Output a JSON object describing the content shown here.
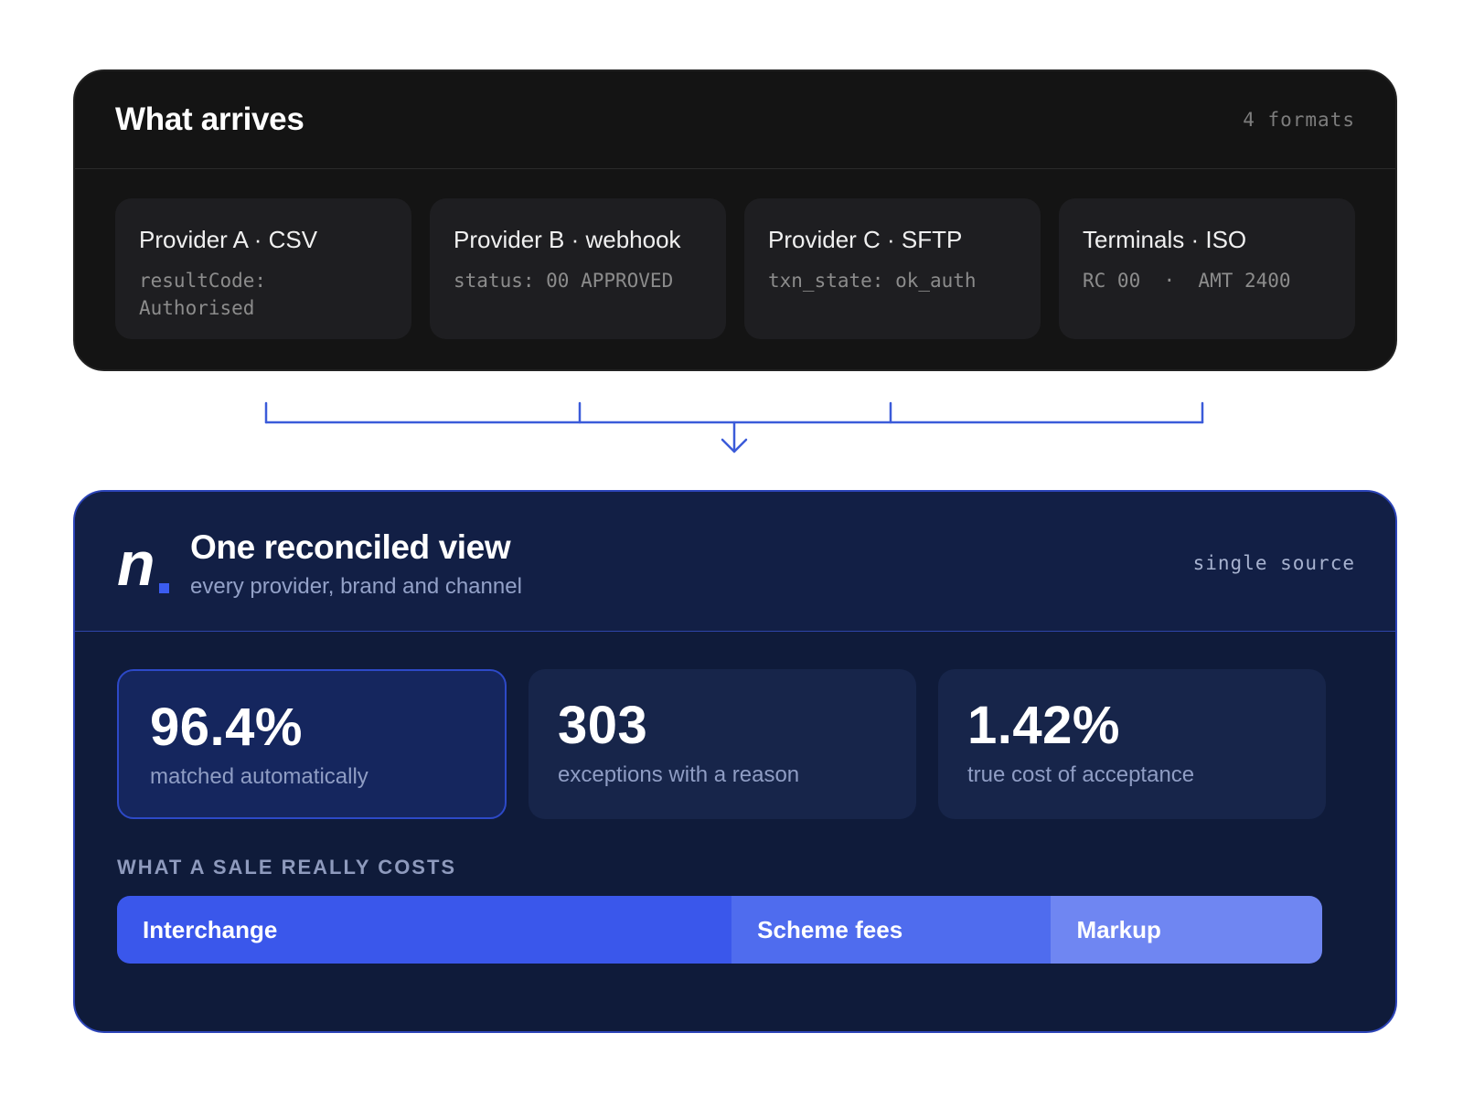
{
  "top_panel": {
    "title": "What arrives",
    "meta": "4 formats",
    "providers": [
      {
        "name": "Provider A · CSV",
        "code": "resultCode: Authorised"
      },
      {
        "name": "Provider B · webhook",
        "code": "status: 00 APPROVED"
      },
      {
        "name": "Provider C · SFTP",
        "code": "txn_state: ok_auth"
      },
      {
        "name": "Terminals · ISO",
        "code": "RC 00  ·  AMT 2400"
      }
    ]
  },
  "bottom_panel": {
    "logo": "n",
    "title": "One reconciled view",
    "subtitle": "every provider, brand and channel",
    "meta": "single source",
    "stats": [
      {
        "value": "96.4%",
        "label": "matched automatically"
      },
      {
        "value": "303",
        "label": "exceptions with a reason"
      },
      {
        "value": "1.42%",
        "label": "true cost of acceptance"
      }
    ],
    "cost_heading": "WHAT A SALE REALLY COSTS",
    "cost_segments": [
      {
        "label": "Interchange",
        "share": 0.51,
        "color": "#3a57eb"
      },
      {
        "label": "Scheme fees",
        "share": 0.265,
        "color": "#4f6cee"
      },
      {
        "label": "Markup",
        "share": 0.225,
        "color": "#6f86f2"
      }
    ]
  },
  "colors": {
    "accent": "#3a57eb",
    "connector": "#3b5bd9",
    "top_bg": "#141414",
    "bottom_bg": "#0f1b3a"
  }
}
